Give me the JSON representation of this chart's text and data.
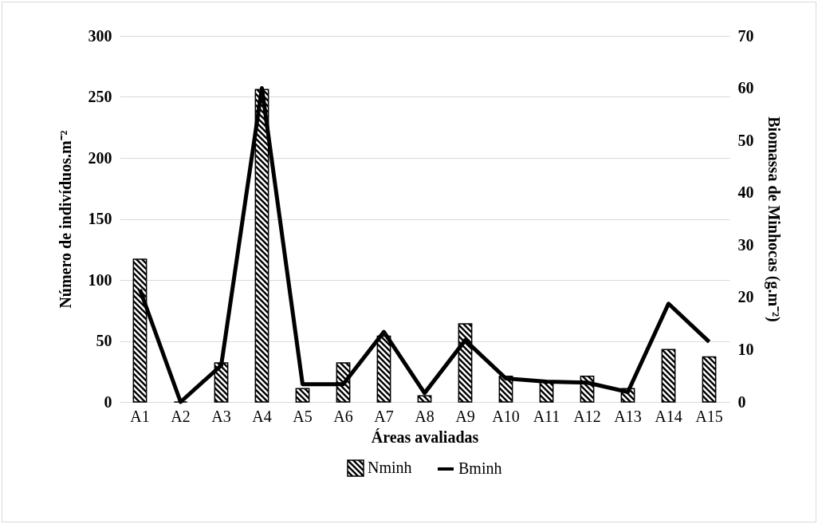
{
  "chart_data": {
    "type": "bar",
    "xlabel": "Áreas avaliadas",
    "ylabel": "Número de indivíduos.m⁻²",
    "y2label": "Biomassa de Minhocas (g.m⁻²)",
    "categories": [
      "A1",
      "A2",
      "A3",
      "A4",
      "A5",
      "A6",
      "A7",
      "A8",
      "A9",
      "A10",
      "A11",
      "A12",
      "A13",
      "A14",
      "A15"
    ],
    "series": [
      {
        "name": "Nminh",
        "color": "#000000",
        "values": [
          117,
          0,
          32,
          256,
          11,
          32,
          54,
          5,
          64,
          21,
          17,
          21,
          11,
          43,
          37
        ]
      },
      {
        "name": "Bminh",
        "type": "line",
        "axis": "y2",
        "color": "#000000",
        "values": [
          21.5,
          0,
          7,
          60,
          3.4,
          3.4,
          13.4,
          1.7,
          11.8,
          4.5,
          3.9,
          3.7,
          1.9,
          18.8,
          11.5
        ]
      }
    ],
    "ylim": [
      0,
      300
    ],
    "yticks": [
      0,
      50,
      100,
      150,
      200,
      250,
      300
    ],
    "y2lim": [
      0,
      70
    ],
    "y2ticks": [
      0,
      10,
      20,
      30,
      40,
      50,
      60,
      70
    ],
    "grid": "y",
    "legend": "bottom"
  }
}
